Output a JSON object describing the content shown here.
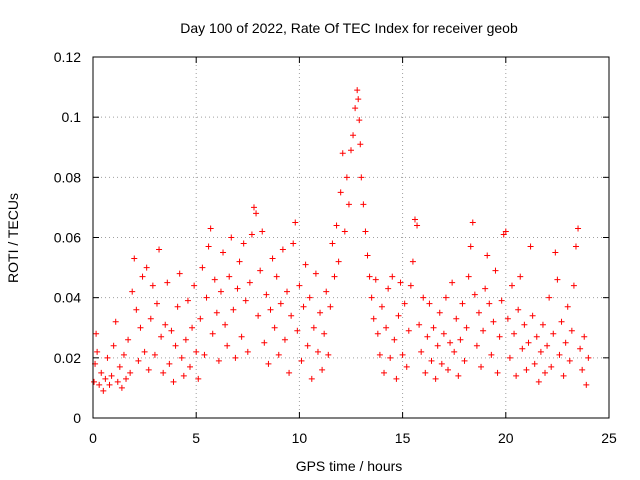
{
  "chart_data": {
    "type": "scatter",
    "title": "Day 100 of 2022, Rate Of TEC Index for receiver geob",
    "xlabel": "GPS time / hours",
    "ylabel": "ROTI / TECUs",
    "xlim": [
      0,
      25
    ],
    "ylim": [
      0,
      0.12
    ],
    "x_ticks": [
      0,
      5,
      10,
      15,
      20,
      25
    ],
    "y_ticks": [
      0,
      0.02,
      0.04,
      0.06,
      0.08,
      0.1,
      0.12
    ],
    "x_tick_labels": [
      "0",
      "5",
      "10",
      "15",
      "20",
      "25"
    ],
    "y_tick_labels": [
      "0",
      "0.02",
      "0.04",
      "0.06",
      "0.08",
      "0.1",
      "0.12"
    ],
    "grid": true,
    "marker": "plus",
    "series": [
      {
        "name": "",
        "color": "#ff0000",
        "points": [
          [
            0.05,
            0.012
          ],
          [
            0.1,
            0.018
          ],
          [
            0.15,
            0.028
          ],
          [
            0.2,
            0.022
          ],
          [
            0.3,
            0.011
          ],
          [
            0.4,
            0.015
          ],
          [
            0.5,
            0.009
          ],
          [
            0.6,
            0.013
          ],
          [
            0.7,
            0.02
          ],
          [
            0.8,
            0.011
          ],
          [
            0.9,
            0.014
          ],
          [
            1.0,
            0.024
          ],
          [
            1.1,
            0.032
          ],
          [
            1.2,
            0.012
          ],
          [
            1.3,
            0.017
          ],
          [
            1.4,
            0.01
          ],
          [
            1.5,
            0.021
          ],
          [
            1.6,
            0.013
          ],
          [
            1.7,
            0.026
          ],
          [
            1.8,
            0.015
          ],
          [
            1.9,
            0.042
          ],
          [
            2.0,
            0.053
          ],
          [
            2.1,
            0.036
          ],
          [
            2.2,
            0.019
          ],
          [
            2.3,
            0.03
          ],
          [
            2.4,
            0.047
          ],
          [
            2.5,
            0.022
          ],
          [
            2.6,
            0.05
          ],
          [
            2.7,
            0.016
          ],
          [
            2.8,
            0.033
          ],
          [
            2.9,
            0.044
          ],
          [
            3.0,
            0.021
          ],
          [
            3.1,
            0.038
          ],
          [
            3.2,
            0.056
          ],
          [
            3.3,
            0.027
          ],
          [
            3.4,
            0.015
          ],
          [
            3.5,
            0.031
          ],
          [
            3.6,
            0.045
          ],
          [
            3.7,
            0.018
          ],
          [
            3.8,
            0.029
          ],
          [
            3.9,
            0.012
          ],
          [
            4.0,
            0.024
          ],
          [
            4.1,
            0.037
          ],
          [
            4.2,
            0.048
          ],
          [
            4.3,
            0.02
          ],
          [
            4.4,
            0.014
          ],
          [
            4.5,
            0.026
          ],
          [
            4.6,
            0.039
          ],
          [
            4.7,
            0.017
          ],
          [
            4.8,
            0.03
          ],
          [
            4.9,
            0.044
          ],
          [
            5.0,
            0.022
          ],
          [
            5.1,
            0.013
          ],
          [
            5.2,
            0.033
          ],
          [
            5.3,
            0.05
          ],
          [
            5.4,
            0.021
          ],
          [
            5.5,
            0.04
          ],
          [
            5.6,
            0.057
          ],
          [
            5.7,
            0.063
          ],
          [
            5.8,
            0.028
          ],
          [
            5.9,
            0.046
          ],
          [
            6.0,
            0.035
          ],
          [
            6.1,
            0.019
          ],
          [
            6.2,
            0.042
          ],
          [
            6.3,
            0.055
          ],
          [
            6.4,
            0.031
          ],
          [
            6.5,
            0.024
          ],
          [
            6.6,
            0.047
          ],
          [
            6.7,
            0.06
          ],
          [
            6.8,
            0.036
          ],
          [
            6.9,
            0.02
          ],
          [
            7.0,
            0.043
          ],
          [
            7.1,
            0.052
          ],
          [
            7.2,
            0.027
          ],
          [
            7.3,
            0.058
          ],
          [
            7.4,
            0.039
          ],
          [
            7.5,
            0.022
          ],
          [
            7.6,
            0.045
          ],
          [
            7.7,
            0.061
          ],
          [
            7.8,
            0.07
          ],
          [
            7.9,
            0.068
          ],
          [
            8.0,
            0.034
          ],
          [
            8.1,
            0.049
          ],
          [
            8.2,
            0.062
          ],
          [
            8.3,
            0.025
          ],
          [
            8.4,
            0.041
          ],
          [
            8.5,
            0.018
          ],
          [
            8.6,
            0.036
          ],
          [
            8.7,
            0.053
          ],
          [
            8.8,
            0.03
          ],
          [
            8.9,
            0.047
          ],
          [
            9.0,
            0.021
          ],
          [
            9.1,
            0.038
          ],
          [
            9.2,
            0.056
          ],
          [
            9.3,
            0.026
          ],
          [
            9.4,
            0.042
          ],
          [
            9.5,
            0.015
          ],
          [
            9.6,
            0.034
          ],
          [
            9.7,
            0.058
          ],
          [
            9.8,
            0.065
          ],
          [
            9.9,
            0.029
          ],
          [
            10.0,
            0.044
          ],
          [
            10.1,
            0.019
          ],
          [
            10.2,
            0.037
          ],
          [
            10.3,
            0.051
          ],
          [
            10.4,
            0.024
          ],
          [
            10.5,
            0.04
          ],
          [
            10.6,
            0.013
          ],
          [
            10.7,
            0.03
          ],
          [
            10.8,
            0.048
          ],
          [
            10.9,
            0.022
          ],
          [
            11.0,
            0.035
          ],
          [
            11.1,
            0.016
          ],
          [
            11.2,
            0.028
          ],
          [
            11.3,
            0.042
          ],
          [
            11.4,
            0.021
          ],
          [
            11.5,
            0.037
          ],
          [
            11.6,
            0.058
          ],
          [
            11.7,
            0.047
          ],
          [
            11.8,
            0.064
          ],
          [
            11.9,
            0.052
          ],
          [
            12.0,
            0.075
          ],
          [
            12.1,
            0.088
          ],
          [
            12.2,
            0.062
          ],
          [
            12.3,
            0.08
          ],
          [
            12.4,
            0.071
          ],
          [
            12.5,
            0.089
          ],
          [
            12.6,
            0.094
          ],
          [
            12.7,
            0.103
          ],
          [
            12.8,
            0.109
          ],
          [
            12.85,
            0.106
          ],
          [
            12.9,
            0.099
          ],
          [
            12.95,
            0.091
          ],
          [
            13.0,
            0.08
          ],
          [
            13.1,
            0.071
          ],
          [
            13.2,
            0.062
          ],
          [
            13.3,
            0.054
          ],
          [
            13.4,
            0.047
          ],
          [
            13.5,
            0.04
          ],
          [
            13.6,
            0.033
          ],
          [
            13.7,
            0.046
          ],
          [
            13.8,
            0.028
          ],
          [
            13.9,
            0.021
          ],
          [
            14.0,
            0.037
          ],
          [
            14.1,
            0.015
          ],
          [
            14.2,
            0.03
          ],
          [
            14.3,
            0.043
          ],
          [
            14.4,
            0.02
          ],
          [
            14.5,
            0.047
          ],
          [
            14.6,
            0.026
          ],
          [
            14.7,
            0.013
          ],
          [
            14.8,
            0.034
          ],
          [
            14.9,
            0.045
          ],
          [
            15.0,
            0.021
          ],
          [
            15.1,
            0.038
          ],
          [
            15.2,
            0.017
          ],
          [
            15.3,
            0.029
          ],
          [
            15.4,
            0.044
          ],
          [
            15.5,
            0.052
          ],
          [
            15.6,
            0.066
          ],
          [
            15.7,
            0.064
          ],
          [
            15.8,
            0.031
          ],
          [
            15.9,
            0.022
          ],
          [
            16.0,
            0.04
          ],
          [
            16.1,
            0.015
          ],
          [
            16.2,
            0.027
          ],
          [
            16.3,
            0.038
          ],
          [
            16.4,
            0.019
          ],
          [
            16.5,
            0.03
          ],
          [
            16.6,
            0.013
          ],
          [
            16.7,
            0.024
          ],
          [
            16.8,
            0.035
          ],
          [
            16.9,
            0.018
          ],
          [
            17.0,
            0.028
          ],
          [
            17.1,
            0.04
          ],
          [
            17.2,
            0.016
          ],
          [
            17.3,
            0.025
          ],
          [
            17.4,
            0.045
          ],
          [
            17.5,
            0.022
          ],
          [
            17.6,
            0.033
          ],
          [
            17.7,
            0.014
          ],
          [
            17.8,
            0.026
          ],
          [
            17.9,
            0.038
          ],
          [
            18.0,
            0.019
          ],
          [
            18.1,
            0.03
          ],
          [
            18.2,
            0.047
          ],
          [
            18.3,
            0.057
          ],
          [
            18.4,
            0.065
          ],
          [
            18.5,
            0.041
          ],
          [
            18.6,
            0.024
          ],
          [
            18.7,
            0.035
          ],
          [
            18.8,
            0.017
          ],
          [
            18.9,
            0.029
          ],
          [
            19.0,
            0.043
          ],
          [
            19.1,
            0.054
          ],
          [
            19.2,
            0.038
          ],
          [
            19.3,
            0.021
          ],
          [
            19.4,
            0.032
          ],
          [
            19.5,
            0.049
          ],
          [
            19.6,
            0.015
          ],
          [
            19.7,
            0.027
          ],
          [
            19.8,
            0.039
          ],
          [
            19.9,
            0.061
          ],
          [
            20.0,
            0.062
          ],
          [
            20.1,
            0.033
          ],
          [
            20.2,
            0.02
          ],
          [
            20.3,
            0.044
          ],
          [
            20.4,
            0.028
          ],
          [
            20.5,
            0.014
          ],
          [
            20.6,
            0.036
          ],
          [
            20.7,
            0.047
          ],
          [
            20.8,
            0.023
          ],
          [
            20.9,
            0.031
          ],
          [
            21.0,
            0.016
          ],
          [
            21.1,
            0.025
          ],
          [
            21.2,
            0.057
          ],
          [
            21.3,
            0.034
          ],
          [
            21.4,
            0.018
          ],
          [
            21.5,
            0.027
          ],
          [
            21.6,
            0.012
          ],
          [
            21.7,
            0.022
          ],
          [
            21.8,
            0.031
          ],
          [
            21.9,
            0.015
          ],
          [
            22.0,
            0.024
          ],
          [
            22.1,
            0.04
          ],
          [
            22.2,
            0.017
          ],
          [
            22.3,
            0.028
          ],
          [
            22.4,
            0.055
          ],
          [
            22.5,
            0.046
          ],
          [
            22.6,
            0.021
          ],
          [
            22.7,
            0.032
          ],
          [
            22.8,
            0.014
          ],
          [
            22.9,
            0.025
          ],
          [
            23.0,
            0.037
          ],
          [
            23.1,
            0.019
          ],
          [
            23.2,
            0.029
          ],
          [
            23.3,
            0.044
          ],
          [
            23.4,
            0.057
          ],
          [
            23.5,
            0.063
          ],
          [
            23.6,
            0.023
          ],
          [
            23.7,
            0.016
          ],
          [
            23.8,
            0.027
          ],
          [
            23.9,
            0.011
          ],
          [
            24.0,
            0.02
          ]
        ]
      }
    ]
  }
}
